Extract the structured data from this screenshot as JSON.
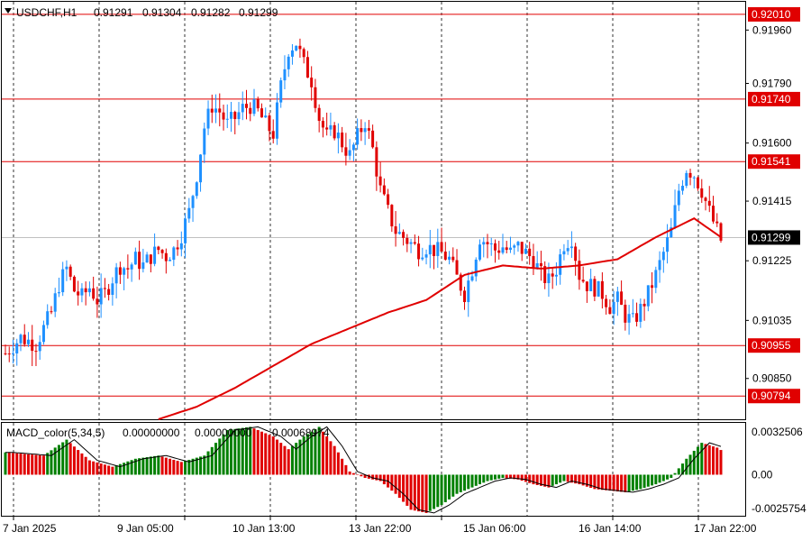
{
  "header": {
    "symbol": "USDCHF,H1",
    "open": "0.91291",
    "high": "0.91304",
    "low": "0.91282",
    "close": "0.91299"
  },
  "macd_header": {
    "name": "MACD_color(5,34,5)",
    "v1": "0.00000000",
    "v2": "0.00000000",
    "v3": "0.00068974"
  },
  "colors": {
    "bull": "#1e90ff",
    "bear": "#e00000",
    "ma": "#e00000",
    "hline": "#e00000",
    "macd_up": "#008000",
    "macd_down": "#e00000",
    "grid": "#000000",
    "current_line": "#c0c0c0"
  },
  "chart_data": {
    "type": "candlestick",
    "price_axis_ticks": [
      "0.91960",
      "0.91790",
      "0.91600",
      "0.91415",
      "0.91225",
      "0.91035",
      "0.90850"
    ],
    "price_range": [
      0.9072,
      0.9205
    ],
    "current_price": "0.91299",
    "horizontal_levels": [
      "0.92010",
      "0.91740",
      "0.91541",
      "0.90955",
      "0.90794"
    ],
    "time_labels": [
      "7 Jan 2025",
      "9 Jan 05:00",
      "10 Jan 13:00",
      "13 Jan 22:00",
      "15 Jan 06:00",
      "16 Jan 14:00",
      "17 Jan 22:00"
    ],
    "macd_axis_ticks": [
      "0.0032506",
      "0.00",
      "-0.0025754"
    ],
    "macd_range": [
      -0.0025754,
      0.0032506
    ],
    "price_path": [
      [
        0,
        0.9093
      ],
      [
        4,
        0.9098
      ],
      [
        8,
        0.9096
      ],
      [
        12,
        0.9106
      ],
      [
        14,
        0.9115
      ],
      [
        16,
        0.912
      ],
      [
        18,
        0.9113
      ],
      [
        20,
        0.9111
      ],
      [
        22,
        0.9114
      ],
      [
        24,
        0.911
      ],
      [
        26,
        0.9112
      ],
      [
        28,
        0.9117
      ],
      [
        30,
        0.9121
      ],
      [
        32,
        0.912
      ],
      [
        34,
        0.9123
      ],
      [
        36,
        0.9121
      ],
      [
        38,
        0.9124
      ],
      [
        40,
        0.9126
      ],
      [
        42,
        0.9124
      ],
      [
        44,
        0.9126
      ],
      [
        46,
        0.9131
      ],
      [
        48,
        0.9138
      ],
      [
        50,
        0.915
      ],
      [
        52,
        0.9165
      ],
      [
        54,
        0.9172
      ],
      [
        56,
        0.917
      ],
      [
        58,
        0.9166
      ],
      [
        60,
        0.9168
      ],
      [
        62,
        0.9171
      ],
      [
        64,
        0.9172
      ],
      [
        66,
        0.917
      ],
      [
        68,
        0.9166
      ],
      [
        70,
        0.9163
      ],
      [
        72,
        0.9178
      ],
      [
        74,
        0.919
      ],
      [
        76,
        0.9192
      ],
      [
        78,
        0.9185
      ],
      [
        80,
        0.918
      ],
      [
        82,
        0.9168
      ],
      [
        84,
        0.9162
      ],
      [
        86,
        0.9164
      ],
      [
        88,
        0.916
      ],
      [
        90,
        0.9156
      ],
      [
        92,
        0.9162
      ],
      [
        94,
        0.9167
      ],
      [
        96,
        0.9158
      ],
      [
        98,
        0.9145
      ],
      [
        100,
        0.9138
      ],
      [
        102,
        0.9132
      ],
      [
        104,
        0.913
      ],
      [
        106,
        0.9128
      ],
      [
        108,
        0.9126
      ],
      [
        110,
        0.9127
      ],
      [
        112,
        0.9126
      ],
      [
        114,
        0.9125
      ],
      [
        116,
        0.9123
      ],
      [
        118,
        0.9117
      ],
      [
        120,
        0.9112
      ],
      [
        122,
        0.912
      ],
      [
        124,
        0.913
      ],
      [
        126,
        0.9128
      ],
      [
        128,
        0.9126
      ],
      [
        130,
        0.9127
      ],
      [
        132,
        0.9125
      ],
      [
        134,
        0.9127
      ],
      [
        136,
        0.9125
      ],
      [
        138,
        0.9123
      ],
      [
        140,
        0.9118
      ],
      [
        142,
        0.9116
      ],
      [
        144,
        0.912
      ],
      [
        146,
        0.9128
      ],
      [
        148,
        0.913
      ],
      [
        150,
        0.9118
      ],
      [
        152,
        0.9115
      ],
      [
        154,
        0.9114
      ],
      [
        156,
        0.9112
      ],
      [
        158,
        0.9108
      ],
      [
        160,
        0.911
      ],
      [
        162,
        0.9105
      ],
      [
        164,
        0.9103
      ],
      [
        166,
        0.9107
      ],
      [
        168,
        0.9112
      ],
      [
        170,
        0.9118
      ],
      [
        172,
        0.9125
      ],
      [
        174,
        0.9132
      ],
      [
        176,
        0.9145
      ],
      [
        178,
        0.9152
      ],
      [
        180,
        0.915
      ],
      [
        182,
        0.9145
      ],
      [
        184,
        0.9138
      ],
      [
        186,
        0.9132
      ],
      [
        187,
        0.9129
      ]
    ],
    "ma_path": [
      [
        40,
        0.9072
      ],
      [
        50,
        0.9076
      ],
      [
        60,
        0.9082
      ],
      [
        70,
        0.9089
      ],
      [
        80,
        0.9096
      ],
      [
        90,
        0.9101
      ],
      [
        100,
        0.9106
      ],
      [
        110,
        0.911
      ],
      [
        120,
        0.9118
      ],
      [
        130,
        0.9121
      ],
      [
        140,
        0.912
      ],
      [
        150,
        0.9121
      ],
      [
        160,
        0.9123
      ],
      [
        170,
        0.913
      ],
      [
        180,
        0.9136
      ],
      [
        187,
        0.913
      ]
    ],
    "macd_path": [
      [
        0,
        0.0014
      ],
      [
        10,
        0.0012
      ],
      [
        16,
        0.0022
      ],
      [
        22,
        0.0009
      ],
      [
        28,
        0.0005
      ],
      [
        34,
        0.001
      ],
      [
        40,
        0.0012
      ],
      [
        46,
        0.0008
      ],
      [
        52,
        0.0012
      ],
      [
        58,
        0.0028
      ],
      [
        64,
        0.003
      ],
      [
        70,
        0.0024
      ],
      [
        74,
        0.0016
      ],
      [
        78,
        0.0024
      ],
      [
        82,
        0.003
      ],
      [
        86,
        0.0018
      ],
      [
        90,
        0.0002
      ],
      [
        94,
        -0.0002
      ],
      [
        98,
        -0.0004
      ],
      [
        102,
        -0.0012
      ],
      [
        106,
        -0.0022
      ],
      [
        110,
        -0.0024
      ],
      [
        114,
        -0.0019
      ],
      [
        118,
        -0.0012
      ],
      [
        122,
        -0.0008
      ],
      [
        126,
        -0.0004
      ],
      [
        130,
        -0.0002
      ],
      [
        134,
        -0.0003
      ],
      [
        138,
        -0.0006
      ],
      [
        142,
        -0.0008
      ],
      [
        146,
        -0.0004
      ],
      [
        150,
        -0.0006
      ],
      [
        154,
        -0.0009
      ],
      [
        158,
        -0.001
      ],
      [
        162,
        -0.0011
      ],
      [
        166,
        -0.0009
      ],
      [
        170,
        -0.0006
      ],
      [
        174,
        -0.0002
      ],
      [
        178,
        0.001
      ],
      [
        182,
        0.002
      ],
      [
        186,
        0.0017
      ],
      [
        188,
        0.0014
      ]
    ],
    "n_bars": 188
  }
}
